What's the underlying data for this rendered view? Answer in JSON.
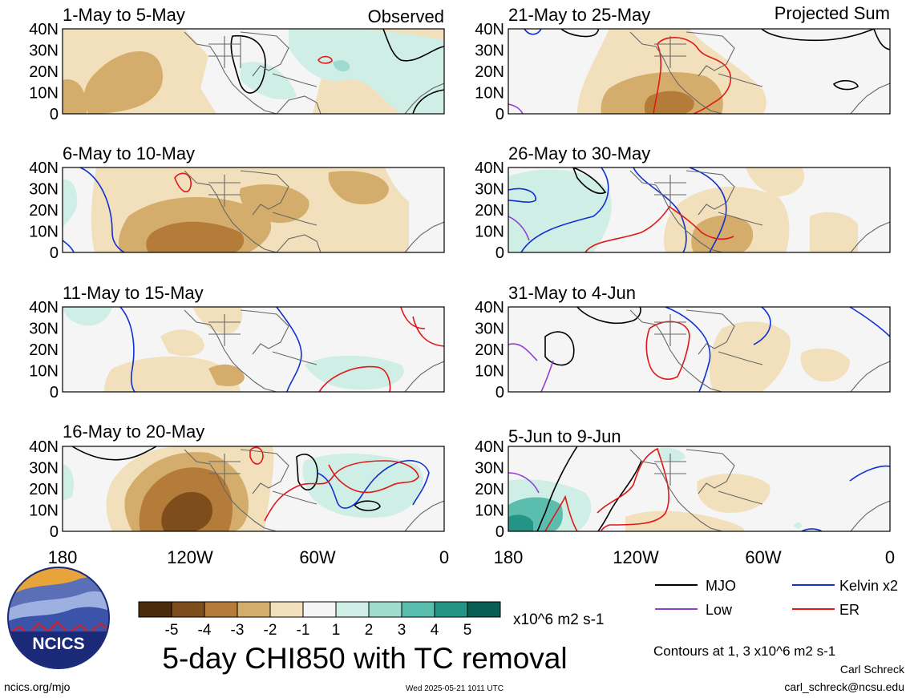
{
  "title": "5-day CHI850 with TC removal",
  "column_labels": {
    "left": "Observed",
    "right": "Projected Sum"
  },
  "panels": [
    {
      "id": "p1",
      "period": "1-May to 5-May"
    },
    {
      "id": "p2",
      "period": "6-May to 10-May"
    },
    {
      "id": "p3",
      "period": "11-May to 15-May"
    },
    {
      "id": "p4",
      "period": "16-May to 20-May"
    },
    {
      "id": "p5",
      "period": "21-May to 25-May"
    },
    {
      "id": "p6",
      "period": "26-May to 30-May"
    },
    {
      "id": "p7",
      "period": "31-May to 4-Jun"
    },
    {
      "id": "p8",
      "period": "5-Jun to 9-Jun"
    }
  ],
  "axes": {
    "lat_ticks": [
      "40N",
      "30N",
      "20N",
      "10N",
      "0"
    ],
    "lon_ticks": [
      "180",
      "120W",
      "60W",
      "0"
    ]
  },
  "colorbar": {
    "labels": [
      "-5",
      "-4",
      "-3",
      "-2",
      "-1",
      "1",
      "2",
      "3",
      "4",
      "5"
    ],
    "colors": [
      "#4a2c0c",
      "#7d4e1c",
      "#b47c38",
      "#d4ad6c",
      "#f1e0bb",
      "#f5f5f5",
      "#cfeee6",
      "#9ddccf",
      "#5bbdad",
      "#239485",
      "#075e52"
    ],
    "units": "x10^6 m2 s-1"
  },
  "legend": [
    {
      "label": "MJO",
      "color": "#000000"
    },
    {
      "label": "Kelvin x2",
      "color": "#1030d0"
    },
    {
      "label": "Low",
      "color": "#9040d0"
    },
    {
      "label": "ER",
      "color": "#e01818"
    }
  ],
  "contour_note": "Contours at 1, 3 x10^6 m2 s-1",
  "author": "Carl Schreck",
  "email": "carl_schreck@ncsu.edu",
  "website": "ncics.org/mjo",
  "timestamp": "Wed 2025-05-21 1011 UTC",
  "logo_text": "NCICS"
}
